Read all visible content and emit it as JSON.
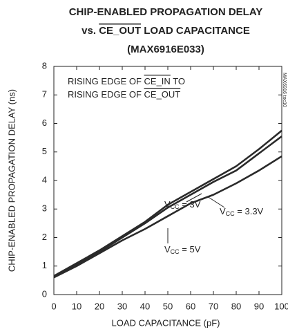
{
  "chart_data": {
    "type": "line",
    "title": {
      "line1": "CHIP-ENABLED PROPAGATION DELAY",
      "line2": [
        "vs. ",
        "CE_OUT",
        " LOAD CAPACITANCE"
      ],
      "line3": "(MAX6916E033)"
    },
    "x_label": "LOAD CAPACITANCE (pF)",
    "y_label": "CHIP-ENABLED PROPAGATION DELAY (ns)",
    "note": [
      [
        "RISING EDGE OF ",
        "CE_IN",
        " TO"
      ],
      [
        "RISING EDGE OF ",
        "CE_OUT",
        ""
      ]
    ],
    "toc": "MAX6916 toc10",
    "x": [
      0,
      10,
      20,
      30,
      40,
      50,
      60,
      70,
      80,
      90,
      100
    ],
    "series": [
      {
        "name": {
          "prefix": "V",
          "sub": "CC",
          "suffix": " = 3V"
        },
        "color": "#2a2a2a",
        "values": [
          0.65,
          1.1,
          1.55,
          2.05,
          2.55,
          3.15,
          3.6,
          4.05,
          4.5,
          5.1,
          5.75
        ]
      },
      {
        "name": {
          "prefix": "V",
          "sub": "CC",
          "suffix": " = 3.3V"
        },
        "color": "#2a2a2a",
        "values": [
          0.62,
          1.05,
          1.5,
          2.0,
          2.5,
          3.05,
          3.5,
          3.95,
          4.35,
          4.95,
          5.55
        ]
      },
      {
        "name": {
          "prefix": "V",
          "sub": "CC",
          "suffix": " = 5V"
        },
        "color": "#2a2a2a",
        "values": [
          0.6,
          1.0,
          1.45,
          1.9,
          2.3,
          2.75,
          3.2,
          3.5,
          3.9,
          4.35,
          4.85
        ]
      }
    ],
    "xlim": [
      0,
      100
    ],
    "xticks": [
      0,
      10,
      20,
      30,
      40,
      50,
      60,
      70,
      80,
      90,
      100
    ],
    "ylim": [
      0,
      8
    ],
    "yticks": [
      0,
      1,
      2,
      3,
      4,
      5,
      6,
      7,
      8
    ],
    "grid": false
  }
}
